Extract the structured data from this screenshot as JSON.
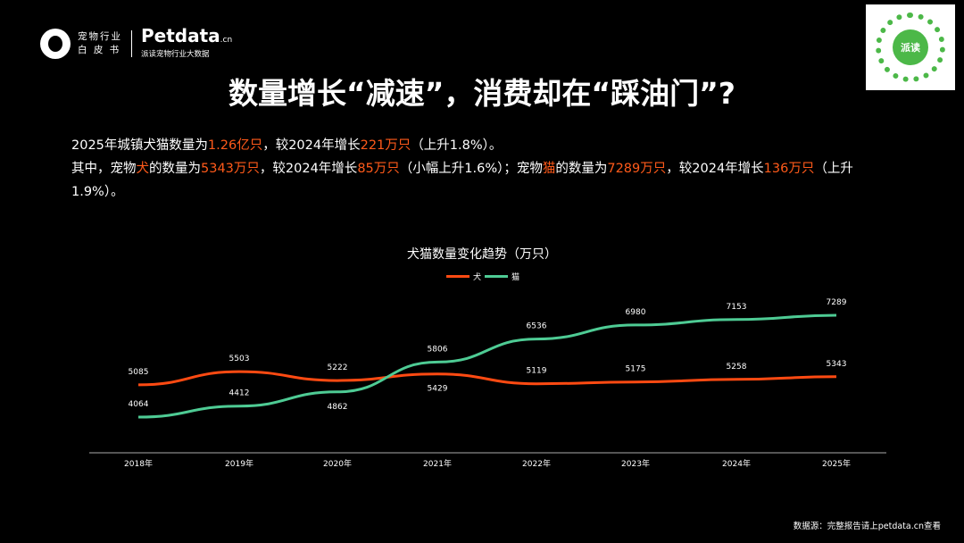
{
  "header": {
    "logo_text_line1": "宠物行业",
    "logo_text_line2": "白 皮 书",
    "brand": "Petdata",
    "brand_suffix": ".cn",
    "brand_tagline": "派读宠物行业大数据",
    "qr_label": "派读"
  },
  "title": "数量增长“减速”，消费却在“踩油门”?",
  "paragraph": {
    "p1": [
      "2025年城镇犬猫数量为",
      "1.26亿只",
      "，较2024年增长",
      "221万只",
      "（上升1.8%）。"
    ],
    "p2": [
      "其中，宠物",
      "犬",
      "的数量为",
      "5343万只",
      "，较2024年增长",
      "85万只",
      "（小幅上升1.6%）；宠物",
      "猫",
      "的数量为",
      "7289万只",
      "，较2024年增长",
      "136万只",
      "（上升1.9%）。"
    ]
  },
  "colors": {
    "dog": "#ff4a12",
    "cat": "#4ecb94",
    "highlight": "#ff5a1a"
  },
  "chart_data": {
    "type": "line",
    "title": "犬猫数量变化趋势（万只）",
    "categories": [
      "2018年",
      "2019年",
      "2020年",
      "2021年",
      "2022年",
      "2023年",
      "2024年",
      "2025年"
    ],
    "series": [
      {
        "name": "犬",
        "values": [
          5085,
          5503,
          5222,
          5429,
          5119,
          5175,
          5258,
          5343
        ]
      },
      {
        "name": "猫",
        "values": [
          4064,
          4412,
          4862,
          5806,
          6536,
          6980,
          7153,
          7289
        ]
      }
    ],
    "ylim": [
      3000,
      8000
    ],
    "grid": false,
    "legend": "top-center",
    "data_labels": true
  },
  "footer": {
    "source": "数据源：完整报告请上petdata.cn查看"
  }
}
